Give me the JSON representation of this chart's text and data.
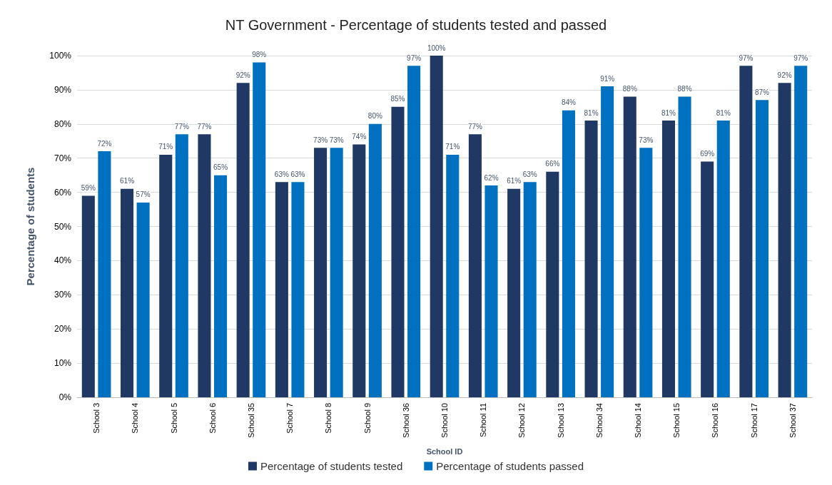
{
  "chart_data": {
    "type": "bar",
    "title": "NT Government - Percentage of students tested and passed",
    "xlabel": "School ID",
    "ylabel": "Percentage of students",
    "categories": [
      "School 3",
      "School 4",
      "School 5",
      "School 6",
      "School 35",
      "School 7",
      "School 8",
      "School 9",
      "School 36",
      "School 10",
      "School 11",
      "School 12",
      "School 13",
      "School 34",
      "School 14",
      "School 15",
      "School 16",
      "School 17",
      "School 37"
    ],
    "series": [
      {
        "name": "Percentage of students tested",
        "color": "#1f3864",
        "values": [
          59,
          61,
          71,
          77,
          92,
          63,
          73,
          74,
          85,
          100,
          77,
          61,
          66,
          81,
          88,
          81,
          69,
          97,
          92
        ],
        "value_labels": [
          "59%",
          "61%",
          "71%",
          "77%",
          "92%",
          "63%",
          "73%",
          "74%",
          "85%",
          "100%",
          "77%",
          "61%",
          "66%",
          "81%",
          "88%",
          "81%",
          "69%",
          "97%",
          "92%"
        ]
      },
      {
        "name": "Percentage of students passed",
        "color": "#0070c0",
        "values": [
          72,
          57,
          77,
          65,
          98,
          63,
          73,
          80,
          97,
          71,
          62,
          63,
          84,
          91,
          73,
          88,
          81,
          87,
          97
        ],
        "value_labels": [
          "72%",
          "57%",
          "77%",
          "65%",
          "98%",
          "63%",
          "73%",
          "80%",
          "97%",
          "71%",
          "62%",
          "63%",
          "84%",
          "91%",
          "73%",
          "88%",
          "81%",
          "87%",
          "97%"
        ]
      }
    ],
    "ylim": [
      0,
      100
    ],
    "yticks": [
      {
        "value": 0,
        "label": "0%"
      },
      {
        "value": 10,
        "label": "10%"
      },
      {
        "value": 20,
        "label": "20%"
      },
      {
        "value": 30,
        "label": "30%"
      },
      {
        "value": 40,
        "label": "40%"
      },
      {
        "value": 50,
        "label": "50%"
      },
      {
        "value": 60,
        "label": "60%"
      },
      {
        "value": 70,
        "label": "70%"
      },
      {
        "value": 80,
        "label": "80%"
      },
      {
        "value": 90,
        "label": "90%"
      },
      {
        "value": 100,
        "label": "100%"
      }
    ],
    "grid": "y",
    "legend": "bottom"
  }
}
